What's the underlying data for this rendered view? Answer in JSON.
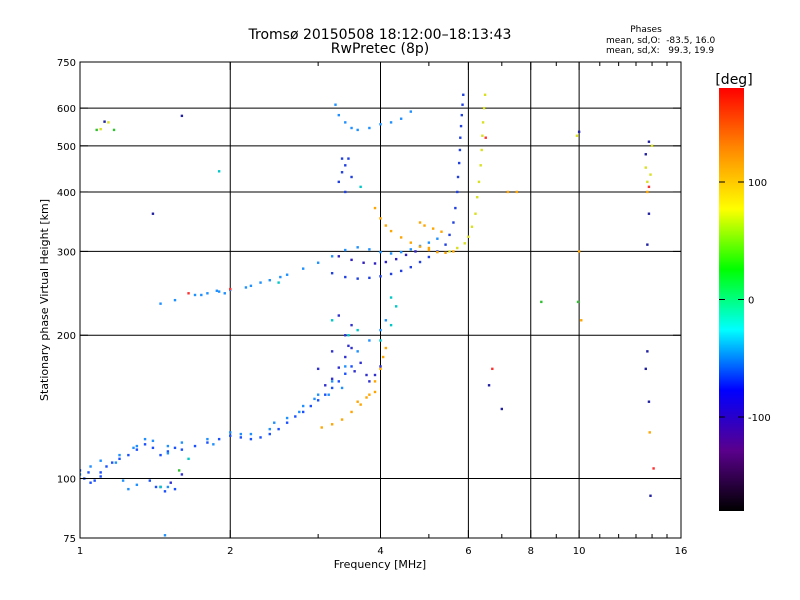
{
  "chart_data": {
    "type": "scatter",
    "title": "Tromsø 20150508 18:12:00–18:13:43",
    "subtitle": "RwPretec (8p)",
    "xlabel": "Frequency [MHz]",
    "ylabel": "Stationary phase Virtual Height [km]",
    "x_scale": "log",
    "y_scale": "log",
    "xlim": [
      1,
      16
    ],
    "ylim": [
      75,
      750
    ],
    "x_ticks": [
      1,
      2,
      4,
      6,
      8,
      10,
      16
    ],
    "x_minor_ticks": [
      3,
      5,
      7,
      9,
      11,
      12,
      13,
      14,
      15
    ],
    "y_ticks": [
      75,
      100,
      200,
      300,
      400,
      500,
      600,
      750
    ],
    "grid": true,
    "phase_stats": {
      "heading": "Phases",
      "o_line": "mean, sd,O:  -83.5, 16.0",
      "x_line": "mean, sd,X:   99.3, 19.9"
    },
    "colorbar": {
      "label": "[deg]",
      "range": [
        -180,
        180
      ],
      "ticks": [
        -100,
        0,
        100
      ],
      "colors": [
        "#000000",
        "#5a008c",
        "#0000ff",
        "#00ffff",
        "#00ff00",
        "#ffff00",
        "#ff8800",
        "#ff0000"
      ]
    },
    "series": [
      {
        "color": "#1a50ff",
        "points": [
          [
            1.0,
            104
          ],
          [
            1.02,
            100
          ],
          [
            1.04,
            103
          ],
          [
            1.07,
            99
          ],
          [
            1.1,
            103
          ],
          [
            1.13,
            106
          ],
          [
            1.16,
            108
          ],
          [
            1.2,
            110
          ],
          [
            1.25,
            112
          ],
          [
            1.3,
            115
          ],
          [
            1.35,
            118
          ],
          [
            1.4,
            116
          ],
          [
            1.45,
            112
          ],
          [
            1.5,
            114
          ],
          [
            1.55,
            116
          ],
          [
            1.6,
            115
          ],
          [
            1.7,
            117
          ],
          [
            1.8,
            119
          ],
          [
            1.9,
            121
          ],
          [
            2.0,
            123
          ],
          [
            2.1,
            122
          ],
          [
            2.2,
            121
          ],
          [
            2.3,
            122
          ],
          [
            2.4,
            124
          ],
          [
            2.5,
            127
          ],
          [
            2.6,
            131
          ],
          [
            2.7,
            135
          ],
          [
            2.8,
            138
          ],
          [
            2.9,
            142
          ],
          [
            3.0,
            146
          ],
          [
            3.1,
            150
          ],
          [
            3.2,
            155
          ],
          [
            3.3,
            160
          ],
          [
            3.4,
            166
          ],
          [
            3.5,
            172
          ]
        ]
      },
      {
        "color": "#1e90ff",
        "points": [
          [
            1.0,
            102
          ],
          [
            1.05,
            106
          ],
          [
            1.1,
            109
          ],
          [
            1.2,
            112
          ],
          [
            1.3,
            117
          ],
          [
            1.4,
            120
          ],
          [
            1.5,
            117
          ],
          [
            1.6,
            119
          ],
          [
            1.8,
            121
          ],
          [
            2.0,
            125
          ],
          [
            2.2,
            124
          ],
          [
            2.4,
            127
          ],
          [
            2.6,
            134
          ],
          [
            2.8,
            142
          ],
          [
            3.0,
            150
          ],
          [
            3.2,
            160
          ],
          [
            3.4,
            172
          ],
          [
            3.6,
            185
          ],
          [
            3.8,
            195
          ],
          [
            4.0,
            205
          ],
          [
            4.1,
            215
          ]
        ]
      },
      {
        "color": "#3030d0",
        "points": [
          [
            1.45,
            96
          ],
          [
            1.52,
            98
          ],
          [
            1.6,
            102
          ],
          [
            3.1,
            157
          ],
          [
            3.2,
            162
          ],
          [
            3.3,
            171
          ],
          [
            3.4,
            180
          ],
          [
            3.5,
            188
          ],
          [
            3.55,
            168
          ],
          [
            3.65,
            175
          ],
          [
            3.75,
            165
          ],
          [
            3.8,
            160
          ],
          [
            3.9,
            165
          ],
          [
            4.0,
            172
          ]
        ]
      },
      {
        "color": "#ffa500",
        "points": [
          [
            3.05,
            128
          ],
          [
            3.2,
            130
          ],
          [
            3.35,
            133
          ],
          [
            3.5,
            138
          ],
          [
            3.65,
            143
          ],
          [
            3.8,
            150
          ],
          [
            3.9,
            160
          ],
          [
            4.0,
            170
          ],
          [
            4.05,
            180
          ],
          [
            4.1,
            188
          ]
        ]
      },
      {
        "color": "#1e90ff",
        "points": [
          [
            1.45,
            233
          ],
          [
            1.55,
            237
          ],
          [
            1.7,
            243
          ],
          [
            1.8,
            245
          ],
          [
            1.9,
            247
          ],
          [
            2.0,
            249
          ],
          [
            2.2,
            254
          ],
          [
            2.4,
            261
          ],
          [
            2.6,
            268
          ],
          [
            2.8,
            276
          ],
          [
            3.0,
            284
          ],
          [
            3.2,
            293
          ],
          [
            3.4,
            302
          ],
          [
            3.6,
            306
          ],
          [
            3.8,
            303
          ],
          [
            4.0,
            299
          ],
          [
            4.2,
            297
          ],
          [
            4.4,
            299
          ],
          [
            4.6,
            303
          ],
          [
            4.8,
            308
          ],
          [
            5.0,
            313
          ],
          [
            5.2,
            319
          ]
        ]
      },
      {
        "color": "#2040e0",
        "points": [
          [
            3.2,
            270
          ],
          [
            3.4,
            265
          ],
          [
            3.6,
            263
          ],
          [
            3.8,
            264
          ],
          [
            4.0,
            266
          ],
          [
            4.2,
            269
          ],
          [
            4.4,
            273
          ],
          [
            4.6,
            278
          ],
          [
            4.8,
            285
          ],
          [
            5.0,
            292
          ],
          [
            5.2,
            300
          ],
          [
            5.4,
            310
          ],
          [
            5.5,
            325
          ],
          [
            5.6,
            345
          ],
          [
            5.65,
            370
          ],
          [
            5.7,
            400
          ],
          [
            5.72,
            430
          ],
          [
            5.75,
            460
          ],
          [
            5.77,
            490
          ],
          [
            5.78,
            520
          ],
          [
            5.8,
            550
          ],
          [
            5.82,
            580
          ],
          [
            5.84,
            610
          ],
          [
            5.86,
            640
          ]
        ]
      },
      {
        "color": "#3020c0",
        "points": [
          [
            3.3,
            293
          ],
          [
            3.5,
            288
          ],
          [
            3.7,
            284
          ],
          [
            3.9,
            283
          ],
          [
            4.1,
            285
          ],
          [
            4.3,
            289
          ],
          [
            4.5,
            295
          ],
          [
            4.7,
            300
          ]
        ]
      },
      {
        "color": "#ffa500",
        "points": [
          [
            3.9,
            370
          ],
          [
            4.0,
            352
          ],
          [
            4.1,
            340
          ],
          [
            4.2,
            331
          ],
          [
            4.4,
            321
          ],
          [
            4.6,
            313
          ],
          [
            4.8,
            307
          ],
          [
            5.0,
            302
          ],
          [
            5.2,
            299
          ],
          [
            5.4,
            298
          ],
          [
            5.6,
            300
          ]
        ]
      },
      {
        "color": "#d8e020",
        "points": [
          [
            5.5,
            300
          ],
          [
            5.7,
            305
          ],
          [
            5.9,
            312
          ],
          [
            6.0,
            322
          ],
          [
            6.1,
            338
          ],
          [
            6.2,
            360
          ],
          [
            6.25,
            390
          ],
          [
            6.3,
            420
          ],
          [
            6.35,
            455
          ],
          [
            6.38,
            490
          ],
          [
            6.4,
            525
          ],
          [
            6.42,
            560
          ],
          [
            6.45,
            600
          ],
          [
            6.48,
            640
          ]
        ]
      },
      {
        "color": "#1e90ff",
        "points": [
          [
            3.25,
            610
          ],
          [
            3.3,
            580
          ],
          [
            3.4,
            560
          ],
          [
            3.5,
            545
          ],
          [
            3.6,
            540
          ],
          [
            3.8,
            545
          ],
          [
            4.0,
            555
          ],
          [
            4.2,
            560
          ],
          [
            4.4,
            570
          ],
          [
            4.6,
            590
          ]
        ]
      },
      {
        "color": "#2040e0",
        "points": [
          [
            3.3,
            420
          ],
          [
            3.35,
            440
          ],
          [
            3.4,
            455
          ],
          [
            3.45,
            470
          ],
          [
            3.4,
            400
          ],
          [
            3.35,
            470
          ],
          [
            3.5,
            430
          ]
        ]
      },
      {
        "color": "#3030d0",
        "points": [
          [
            3.0,
            170
          ],
          [
            3.2,
            185
          ],
          [
            3.4,
            200
          ],
          [
            3.3,
            220
          ],
          [
            3.5,
            210
          ],
          [
            3.45,
            190
          ]
        ]
      },
      {
        "color": "#00c8c8",
        "points": [
          [
            3.45,
            200
          ],
          [
            3.6,
            205
          ],
          [
            4.0,
            195
          ],
          [
            4.2,
            210
          ],
          [
            3.2,
            215
          ]
        ]
      },
      {
        "color": "#ffa500",
        "points": [
          [
            4.8,
            345
          ],
          [
            4.9,
            340
          ],
          [
            5.1,
            335
          ],
          [
            5.3,
            330
          ],
          [
            5.0,
            305
          ]
        ]
      },
      {
        "color": "#ff3030",
        "points": [
          [
            2.0,
            250
          ],
          [
            1.65,
            245
          ],
          [
            6.7,
            170
          ],
          [
            13.8,
            410
          ],
          [
            14.1,
            105
          ],
          [
            6.5,
            520
          ]
        ]
      },
      {
        "color": "#1e90ff",
        "points": [
          [
            1.18,
            108
          ],
          [
            1.28,
            116
          ],
          [
            1.35,
            121
          ],
          [
            1.5,
            113
          ],
          [
            1.85,
            118
          ],
          [
            2.1,
            124
          ],
          [
            2.45,
            131
          ],
          [
            2.75,
            138
          ],
          [
            2.95,
            147
          ],
          [
            3.15,
            150
          ],
          [
            3.35,
            155
          ]
        ]
      },
      {
        "color": "#1a50ff",
        "points": [
          [
            1.38,
            99
          ],
          [
            1.42,
            96
          ],
          [
            1.55,
            95
          ],
          [
            1.48,
            94
          ],
          [
            1.05,
            98
          ],
          [
            1.1,
            101
          ]
        ]
      },
      {
        "color": "#d8e020",
        "points": [
          [
            1.1,
            542
          ],
          [
            1.14,
            560
          ],
          [
            13.6,
            450
          ],
          [
            13.9,
            435
          ],
          [
            14.0,
            500
          ],
          [
            13.7,
            420
          ],
          [
            9.9,
            525
          ]
        ]
      },
      {
        "color": "#30c030",
        "points": [
          [
            1.08,
            540
          ],
          [
            1.17,
            540
          ],
          [
            1.58,
            104
          ],
          [
            8.4,
            235
          ],
          [
            9.95,
            235
          ]
        ]
      },
      {
        "color": "#2020a0",
        "points": [
          [
            1.12,
            562
          ],
          [
            1.6,
            578
          ],
          [
            1.4,
            360
          ],
          [
            13.7,
            310
          ],
          [
            13.8,
            360
          ],
          [
            13.6,
            480
          ],
          [
            10.0,
            535
          ],
          [
            6.6,
            157
          ],
          [
            13.7,
            185
          ],
          [
            13.8,
            145
          ],
          [
            13.6,
            170
          ],
          [
            13.9,
            92
          ],
          [
            7.0,
            140
          ],
          [
            13.8,
            510
          ]
        ]
      },
      {
        "color": "#1e90ff",
        "points": [
          [
            1.22,
            99
          ],
          [
            1.3,
            97
          ],
          [
            1.25,
            95
          ],
          [
            1.48,
            76
          ],
          [
            1.5,
            96
          ],
          [
            2.52,
            265
          ],
          [
            2.3,
            258
          ],
          [
            2.15,
            252
          ],
          [
            1.95,
            245
          ],
          [
            1.88,
            248
          ],
          [
            1.75,
            243
          ]
        ]
      },
      {
        "color": "#ffa500",
        "points": [
          [
            10.0,
            300
          ],
          [
            10.1,
            215
          ],
          [
            13.85,
            125
          ],
          [
            13.7,
            400
          ],
          [
            7.5,
            400
          ],
          [
            7.2,
            400
          ],
          [
            3.9,
            152
          ],
          [
            3.75,
            148
          ],
          [
            3.6,
            145
          ]
        ]
      },
      {
        "color": "#00c8c8",
        "points": [
          [
            1.45,
            96
          ],
          [
            1.65,
            110
          ],
          [
            2.5,
            258
          ],
          [
            4.2,
            240
          ],
          [
            4.3,
            230
          ],
          [
            1.9,
            442
          ],
          [
            3.65,
            410
          ]
        ]
      }
    ]
  }
}
